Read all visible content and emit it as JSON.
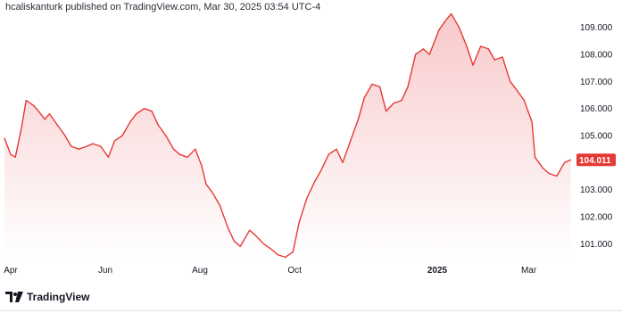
{
  "header": {
    "author": "hcaliskanturk",
    "published_on": "published on TradingView.com,",
    "date": "Mar 30, 2025 03:54 UTC-4"
  },
  "footer": {
    "brand": "TradingView",
    "logo_icon": "tradingview-logo-icon"
  },
  "colors": {
    "line": "#e53935",
    "area_top": "#f8c9cb",
    "area_bottom": "#ffffff",
    "badge": "#e53935",
    "badge_text": "#ffffff"
  },
  "chart_data": {
    "type": "area",
    "title": "",
    "xlabel": "",
    "ylabel": "",
    "last_value_label": "104.011",
    "y_ticks": [
      101.0,
      102.0,
      103.0,
      104.0,
      105.0,
      106.0,
      107.0,
      108.0,
      109.0
    ],
    "y_tick_labels": [
      "101.000",
      "102.000",
      "103.000",
      "104.000",
      "105.000",
      "106.000",
      "107.000",
      "108.000",
      "109.000"
    ],
    "ylim": [
      100.45,
      109.55
    ],
    "x_tick_labels": [
      {
        "label": "Apr",
        "date": "2024-04-01",
        "bold": false
      },
      {
        "label": "Jun",
        "date": "2024-06-01",
        "bold": false
      },
      {
        "label": "Aug",
        "date": "2024-08-01",
        "bold": false
      },
      {
        "label": "Oct",
        "date": "2024-10-01",
        "bold": false
      },
      {
        "label": "2025",
        "date": "2025-01-01",
        "bold": true
      },
      {
        "label": "Mar",
        "date": "2025-03-01",
        "bold": false
      }
    ],
    "xlim": [
      "2024-03-28",
      "2025-03-30"
    ],
    "grid": false,
    "series": [
      {
        "x": [
          "2024-03-28",
          "2024-04-01",
          "2024-04-04",
          "2024-04-08",
          "2024-04-11",
          "2024-04-16",
          "2024-04-19",
          "2024-04-23",
          "2024-04-26",
          "2024-05-01",
          "2024-05-06",
          "2024-05-10",
          "2024-05-15",
          "2024-05-20",
          "2024-05-24",
          "2024-05-29",
          "2024-06-03",
          "2024-06-07",
          "2024-06-12",
          "2024-06-17",
          "2024-06-21",
          "2024-06-26",
          "2024-07-01",
          "2024-07-05",
          "2024-07-10",
          "2024-07-15",
          "2024-07-19",
          "2024-07-24",
          "2024-07-29",
          "2024-08-02",
          "2024-08-05",
          "2024-08-09",
          "2024-08-14",
          "2024-08-19",
          "2024-08-23",
          "2024-08-27",
          "2024-09-02",
          "2024-09-06",
          "2024-09-11",
          "2024-09-16",
          "2024-09-20",
          "2024-09-25",
          "2024-09-30",
          "2024-10-04",
          "2024-10-09",
          "2024-10-14",
          "2024-10-18",
          "2024-10-23",
          "2024-10-28",
          "2024-11-01",
          "2024-11-06",
          "2024-11-11",
          "2024-11-15",
          "2024-11-20",
          "2024-11-25",
          "2024-11-29",
          "2024-12-04",
          "2024-12-09",
          "2024-12-13",
          "2024-12-18",
          "2024-12-23",
          "2024-12-27",
          "2025-01-02",
          "2025-01-07",
          "2025-01-10",
          "2025-01-15",
          "2025-01-20",
          "2025-01-24",
          "2025-01-29",
          "2025-02-03",
          "2025-02-07",
          "2025-02-12",
          "2025-02-17",
          "2025-02-21",
          "2025-02-26",
          "2025-03-03",
          "2025-03-05",
          "2025-03-10",
          "2025-03-14",
          "2025-03-19",
          "2025-03-24",
          "2025-03-28"
        ],
        "y": [
          104.9,
          104.3,
          104.2,
          105.3,
          106.3,
          106.1,
          105.9,
          105.6,
          105.8,
          105.4,
          105.0,
          104.6,
          104.5,
          104.6,
          104.7,
          104.6,
          104.2,
          104.8,
          105.0,
          105.5,
          105.8,
          106.0,
          105.9,
          105.4,
          105.0,
          104.5,
          104.3,
          104.2,
          104.5,
          103.9,
          103.2,
          102.9,
          102.4,
          101.6,
          101.1,
          100.9,
          101.5,
          101.3,
          101.0,
          100.8,
          100.6,
          100.5,
          100.7,
          101.8,
          102.7,
          103.3,
          103.7,
          104.3,
          104.5,
          104.0,
          104.8,
          105.6,
          106.4,
          106.9,
          106.8,
          105.9,
          106.2,
          106.3,
          106.8,
          108.0,
          108.2,
          108.0,
          108.9,
          109.3,
          109.5,
          109.0,
          108.3,
          107.6,
          108.3,
          108.2,
          107.8,
          107.9,
          107.0,
          106.7,
          106.3,
          105.5,
          104.2,
          103.8,
          103.6,
          103.5,
          104.0,
          104.1
        ]
      }
    ]
  }
}
